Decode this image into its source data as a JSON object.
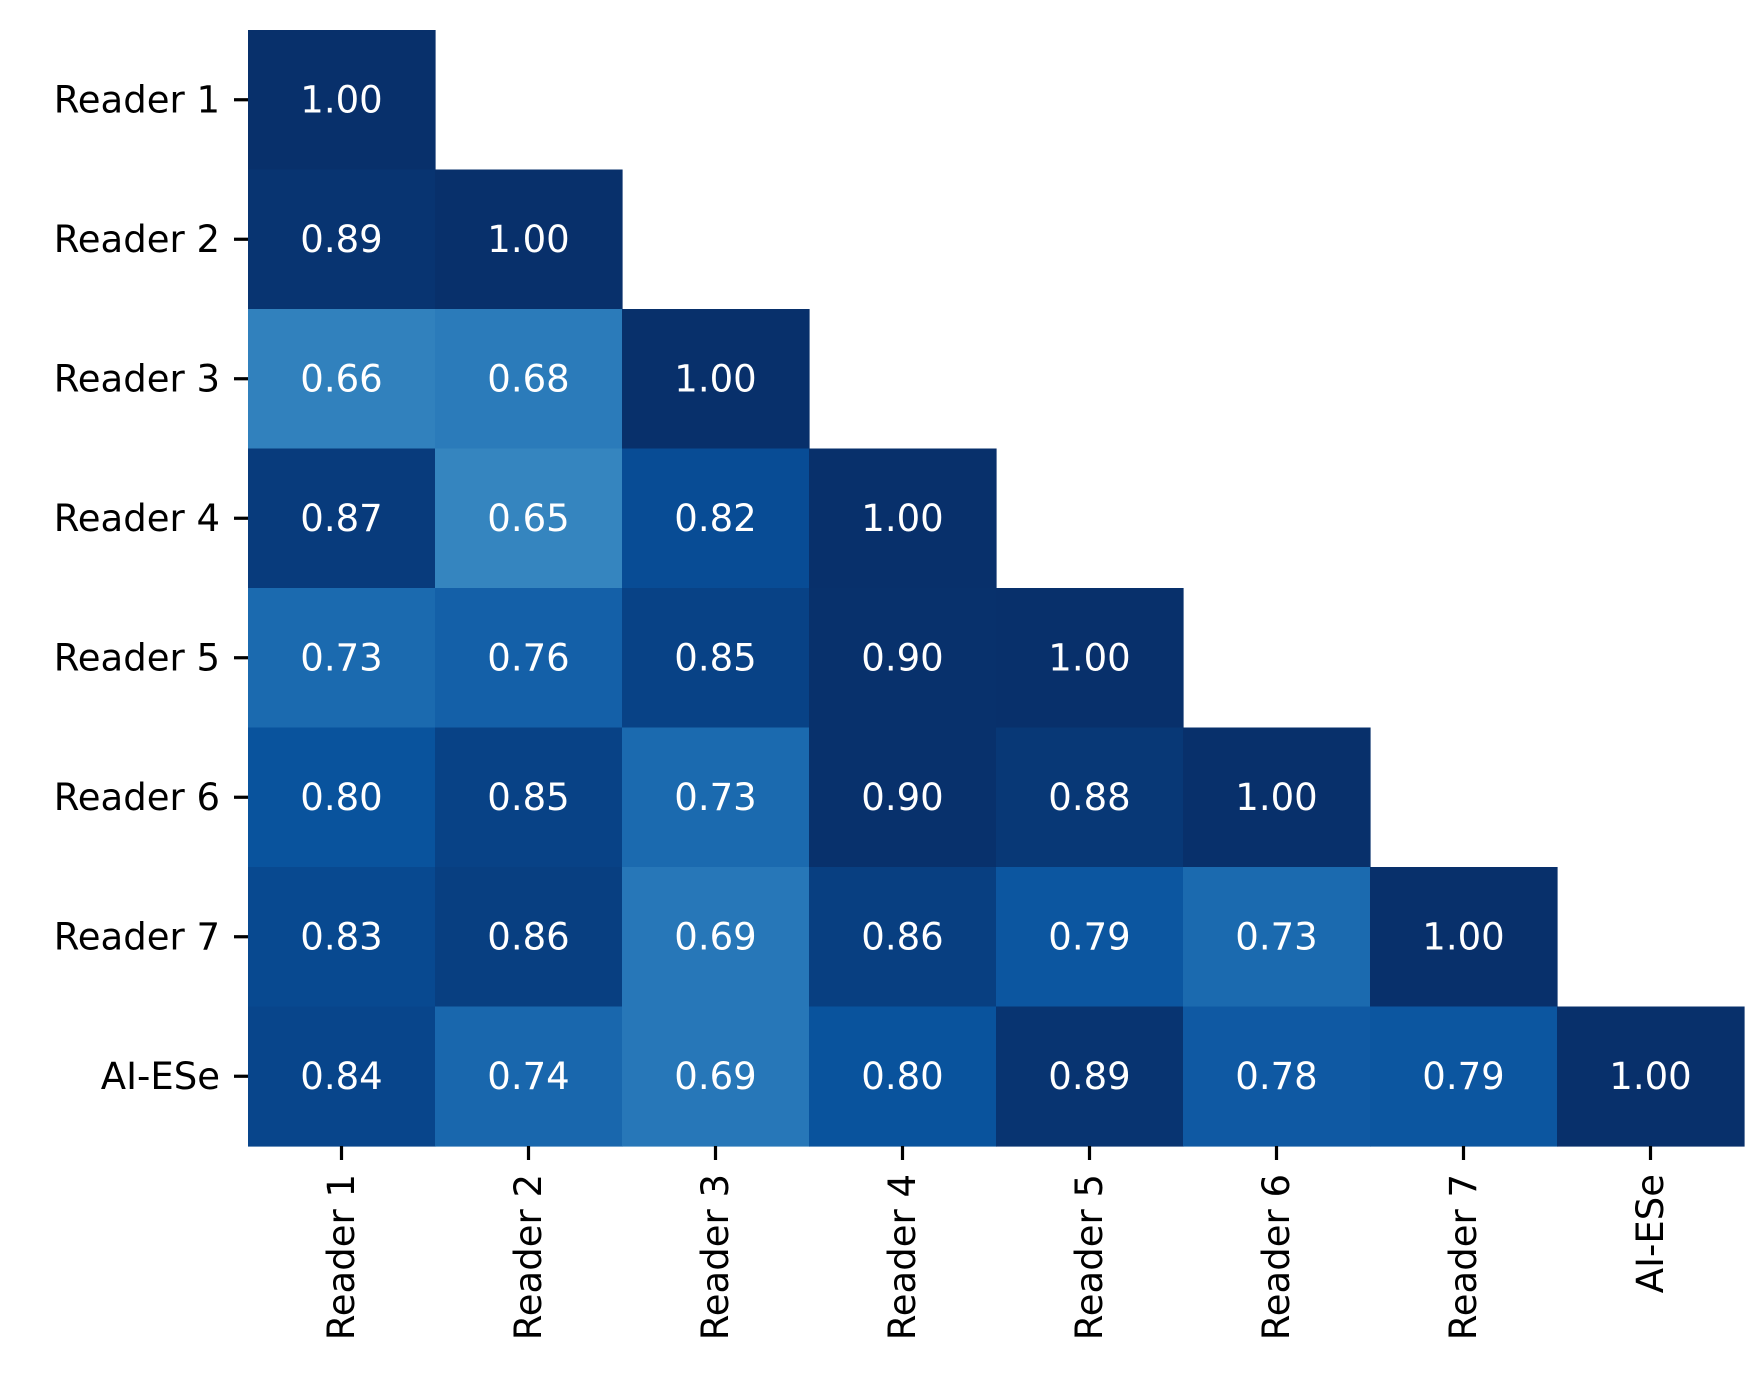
{
  "chart_data": {
    "type": "heatmap",
    "title": "",
    "xlabel": "",
    "ylabel": "",
    "row_labels": [
      "Reader 1",
      "Reader 2",
      "Reader 3",
      "Reader 4",
      "Reader 5",
      "Reader 6",
      "Reader 7",
      "AI-ESe"
    ],
    "col_labels": [
      "Reader 1",
      "Reader 2",
      "Reader 3",
      "Reader 4",
      "Reader 5",
      "Reader 6",
      "Reader 7",
      "AI-ESe"
    ],
    "mask": "upper-triangle",
    "colormap": "Blues",
    "value_range": [
      0.65,
      1.0
    ],
    "colorbar": false,
    "annotation_color": "#ffffff",
    "values": [
      [
        1.0
      ],
      [
        0.89,
        1.0
      ],
      [
        0.66,
        0.68,
        1.0
      ],
      [
        0.87,
        0.65,
        0.82,
        1.0
      ],
      [
        0.73,
        0.76,
        0.85,
        0.9,
        1.0
      ],
      [
        0.8,
        0.85,
        0.73,
        0.9,
        0.88,
        1.0
      ],
      [
        0.83,
        0.86,
        0.69,
        0.86,
        0.79,
        0.73,
        1.0
      ],
      [
        0.84,
        0.74,
        0.69,
        0.8,
        0.89,
        0.78,
        0.79,
        1.0
      ]
    ]
  }
}
